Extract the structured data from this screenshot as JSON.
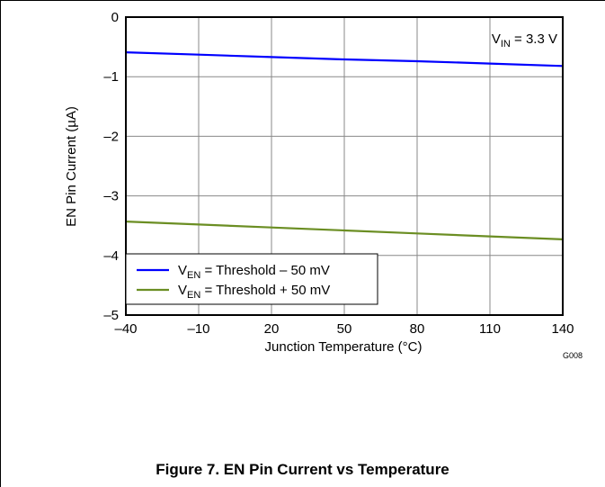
{
  "chart_data": {
    "type": "line",
    "title": "",
    "xlabel": "Junction Temperature (°C)",
    "ylabel": "EN Pin Current (µA)",
    "xlim": [
      -40,
      140
    ],
    "ylim": [
      -5,
      0
    ],
    "x_ticks": [
      -40,
      -10,
      20,
      50,
      80,
      110,
      140
    ],
    "x_tick_labels": [
      "–40",
      "–10",
      "20",
      "50",
      "80",
      "110",
      "140"
    ],
    "y_ticks": [
      0,
      -1,
      -2,
      -3,
      -4,
      -5
    ],
    "y_tick_labels": [
      "0",
      "–1",
      "–2",
      "–3",
      "–4",
      "–5"
    ],
    "grid": true,
    "legend_position": "bottom-left",
    "annotation": {
      "main": "V",
      "sub": "IN",
      "rest": " = 3.3 V"
    },
    "series": [
      {
        "legend_main": "V",
        "legend_sub": "EN",
        "legend_rest": " = Threshold – 50 mV",
        "color": "#0000ff",
        "x": [
          -40,
          -10,
          20,
          50,
          80,
          110,
          140
        ],
        "values": [
          -0.59,
          -0.63,
          -0.67,
          -0.71,
          -0.74,
          -0.78,
          -0.82
        ]
      },
      {
        "legend_main": "V",
        "legend_sub": "EN",
        "legend_rest": " = Threshold + 50 mV",
        "color": "#6b8e23",
        "x": [
          -40,
          -10,
          20,
          50,
          80,
          110,
          140
        ],
        "values": [
          -3.43,
          -3.48,
          -3.53,
          -3.58,
          -3.63,
          -3.68,
          -3.73
        ]
      }
    ],
    "figure_id": "G008"
  },
  "caption": "Figure 7. EN Pin Current vs Temperature"
}
